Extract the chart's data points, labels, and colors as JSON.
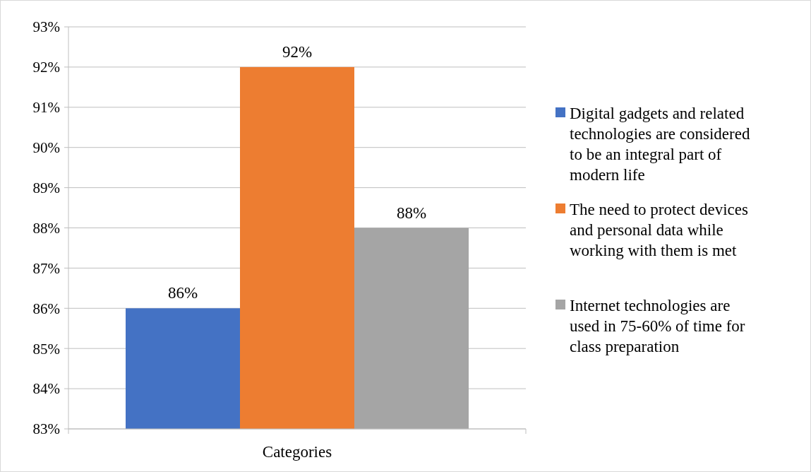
{
  "chart_data": {
    "type": "bar",
    "categories": [
      "Categories"
    ],
    "series": [
      {
        "name": "Digital gadgets and related technologies are considered to be an integral part of modern life",
        "color": "#4472c4",
        "values": [
          86
        ],
        "value_labels": [
          "86%"
        ]
      },
      {
        "name": "The need to protect devices and personal data while working with them is met",
        "color": "#ed7d31",
        "values": [
          92
        ],
        "value_labels": [
          "92%"
        ]
      },
      {
        "name": "Internet technologies are used in 75-60% of time for class preparation",
        "color": "#a5a5a5",
        "values": [
          88
        ],
        "value_labels": [
          "88%"
        ]
      }
    ],
    "ylim": [
      83,
      93
    ],
    "yticks": [
      {
        "value": 83,
        "label": "83%"
      },
      {
        "value": 84,
        "label": "84%"
      },
      {
        "value": 85,
        "label": "85%"
      },
      {
        "value": 86,
        "label": "86%"
      },
      {
        "value": 87,
        "label": "87%"
      },
      {
        "value": 88,
        "label": "88%"
      },
      {
        "value": 89,
        "label": "89%"
      },
      {
        "value": 90,
        "label": "90%"
      },
      {
        "value": 91,
        "label": "91%"
      },
      {
        "value": 92,
        "label": "92%"
      },
      {
        "value": 93,
        "label": "93%"
      }
    ],
    "grid": "y",
    "legend": "right"
  }
}
